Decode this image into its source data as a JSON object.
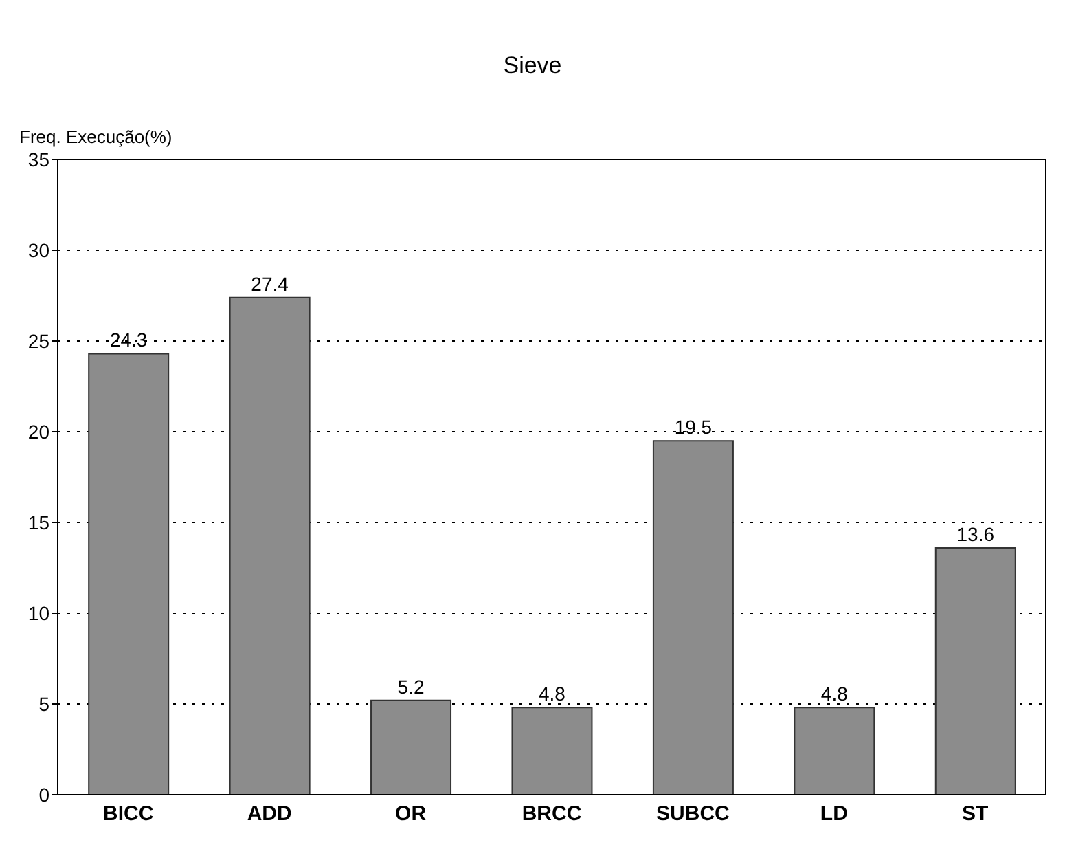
{
  "chart_data": {
    "type": "bar",
    "title": "Sieve",
    "ylabel": "Freq. Execução(%)",
    "categories": [
      "BICC",
      "ADD",
      "OR",
      "BRCC",
      "SUBCC",
      "LD",
      "ST"
    ],
    "values": [
      24.3,
      27.4,
      5.2,
      4.8,
      19.5,
      4.8,
      13.6
    ],
    "color": "#8c8c8c",
    "ylim": [
      0,
      35
    ],
    "yticks": [
      0,
      5,
      10,
      15,
      20,
      25,
      30,
      35
    ],
    "grid": "y",
    "data_labels": true,
    "legend": false
  }
}
